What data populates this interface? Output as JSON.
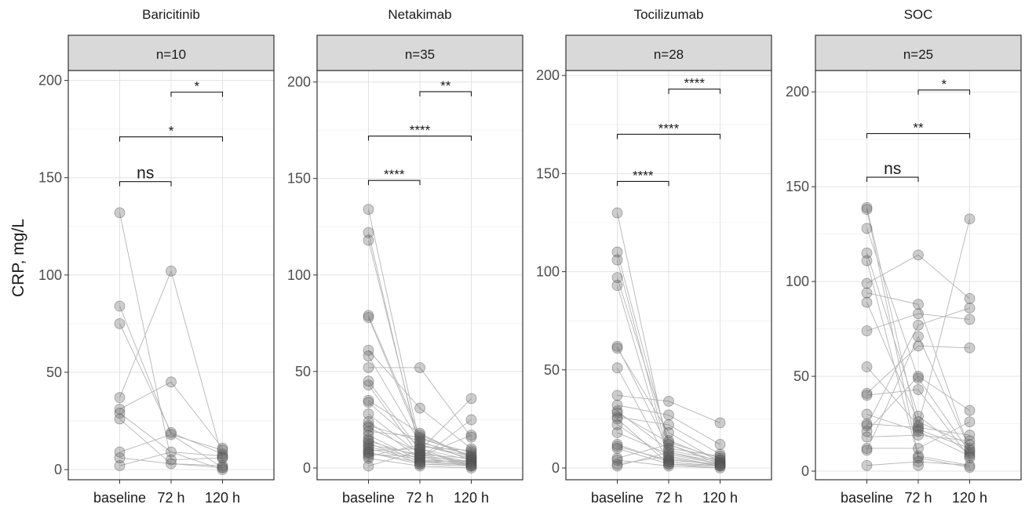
{
  "y_axis_label": "CRP, mg/L",
  "chart_data": [
    {
      "type": "scatter",
      "title": "Baricitinib",
      "strip_label": "n=10",
      "ylabel": "CRP, mg/L",
      "categories": [
        "baseline",
        "72 h",
        "120 h"
      ],
      "ylim": [
        -5,
        205
      ],
      "yticks": [
        0,
        50,
        100,
        150,
        200
      ],
      "grid": true,
      "points": {
        "baseline": [
          132,
          84,
          75,
          37,
          31,
          29,
          26,
          9,
          6,
          2
        ],
        "72 h": [
          102,
          45,
          19,
          18,
          9,
          5,
          3
        ],
        "120 h": [
          11,
          10,
          8,
          7,
          6,
          6,
          2,
          1,
          1,
          0
        ]
      },
      "lines": [
        [
          132,
          5,
          6
        ],
        [
          84,
          18,
          10
        ],
        [
          75,
          19,
          8
        ],
        [
          37,
          102,
          6
        ],
        [
          31,
          45,
          11
        ],
        [
          29,
          9,
          7
        ],
        [
          26,
          3,
          2
        ],
        [
          9,
          18,
          1
        ],
        [
          6,
          3,
          1
        ],
        [
          2,
          9,
          0
        ]
      ],
      "comparisons": [
        {
          "from": "baseline",
          "to": "72 h",
          "y": 148,
          "label": "ns"
        },
        {
          "from": "baseline",
          "to": "120 h",
          "y": 171,
          "label": "*"
        },
        {
          "from": "72 h",
          "to": "120 h",
          "y": 194,
          "label": "*"
        }
      ]
    },
    {
      "type": "scatter",
      "title": "Netakimab",
      "strip_label": "n=35",
      "ylabel": "",
      "categories": [
        "baseline",
        "72 h",
        "120 h"
      ],
      "ylim": [
        -5,
        205
      ],
      "yticks": [
        0,
        50,
        100,
        150,
        200
      ],
      "grid": true,
      "points": {
        "baseline": [
          134,
          122,
          118,
          79,
          78,
          61,
          58,
          52,
          45,
          43,
          35,
          34,
          28,
          24,
          22,
          21,
          19,
          17,
          15,
          14,
          13,
          12,
          11,
          10,
          9,
          8,
          8,
          7,
          6,
          5,
          1
        ],
        "72 h": [
          52,
          31,
          18,
          17,
          16,
          15,
          14,
          13,
          12,
          11,
          10,
          10,
          9,
          8,
          8,
          7,
          7,
          6,
          6,
          5,
          5,
          4,
          4,
          3,
          3,
          2,
          2,
          1
        ],
        "120 h": [
          36,
          25,
          17,
          16,
          10,
          9,
          8,
          7,
          6,
          6,
          5,
          5,
          4,
          4,
          3,
          3,
          2,
          2,
          1,
          1,
          1,
          0
        ]
      },
      "lines": [
        [
          134,
          12,
          5
        ],
        [
          122,
          8,
          3
        ],
        [
          118,
          10,
          4
        ],
        [
          79,
          17,
          6
        ],
        [
          78,
          15,
          8
        ],
        [
          61,
          31,
          10
        ],
        [
          58,
          13,
          7
        ],
        [
          52,
          52,
          16
        ],
        [
          45,
          9,
          36
        ],
        [
          43,
          6,
          3
        ],
        [
          35,
          18,
          5
        ],
        [
          34,
          11,
          9
        ],
        [
          28,
          7,
          2
        ],
        [
          24,
          5,
          25
        ],
        [
          22,
          14,
          4
        ],
        [
          21,
          8,
          3
        ],
        [
          19,
          16,
          6
        ],
        [
          17,
          4,
          1
        ],
        [
          15,
          3,
          2
        ],
        [
          14,
          6,
          17
        ],
        [
          13,
          2,
          1
        ],
        [
          12,
          7,
          5
        ],
        [
          11,
          5,
          2
        ],
        [
          10,
          4,
          3
        ],
        [
          9,
          10,
          1
        ],
        [
          8,
          3,
          4
        ],
        [
          8,
          2,
          2
        ],
        [
          7,
          6,
          1
        ],
        [
          6,
          12,
          6
        ],
        [
          5,
          1,
          0
        ],
        [
          1,
          9,
          1
        ]
      ],
      "comparisons": [
        {
          "from": "baseline",
          "to": "72 h",
          "y": 149,
          "label": "****"
        },
        {
          "from": "baseline",
          "to": "120 h",
          "y": 172,
          "label": "****"
        },
        {
          "from": "72 h",
          "to": "120 h",
          "y": 195,
          "label": "**"
        }
      ]
    },
    {
      "type": "scatter",
      "title": "Tocilizumab",
      "strip_label": "n=28",
      "ylabel": "",
      "categories": [
        "baseline",
        "72 h",
        "120 h"
      ],
      "ylim": [
        -5,
        205
      ],
      "yticks": [
        0,
        50,
        100,
        150,
        200
      ],
      "grid": true,
      "points": {
        "baseline": [
          130,
          110,
          106,
          97,
          93,
          62,
          61,
          51,
          37,
          32,
          29,
          28,
          26,
          25,
          22,
          18,
          12,
          11,
          10,
          5,
          4,
          2,
          1
        ],
        "72 h": [
          34,
          27,
          22,
          18,
          14,
          13,
          12,
          10,
          9,
          8,
          7,
          6,
          5,
          4,
          4,
          3,
          3,
          2,
          2,
          1
        ],
        "120 h": [
          23,
          12,
          7,
          6,
          5,
          4,
          4,
          3,
          3,
          2,
          2,
          2,
          1,
          1,
          1,
          0
        ]
      },
      "lines": [
        [
          130,
          8,
          3
        ],
        [
          110,
          12,
          2
        ],
        [
          106,
          6,
          1
        ],
        [
          97,
          14,
          4
        ],
        [
          93,
          4,
          2
        ],
        [
          62,
          10,
          6
        ],
        [
          61,
          18,
          3
        ],
        [
          51,
          3,
          1
        ],
        [
          37,
          34,
          23
        ],
        [
          32,
          27,
          12
        ],
        [
          29,
          9,
          4
        ],
        [
          28,
          13,
          5
        ],
        [
          26,
          22,
          7
        ],
        [
          25,
          2,
          0
        ],
        [
          22,
          5,
          1
        ],
        [
          18,
          7,
          2
        ],
        [
          12,
          3,
          1
        ],
        [
          11,
          4,
          2
        ],
        [
          10,
          2,
          1
        ],
        [
          5,
          12,
          3
        ],
        [
          4,
          1,
          0
        ],
        [
          2,
          6,
          1
        ],
        [
          1,
          8,
          2
        ]
      ],
      "comparisons": [
        {
          "from": "baseline",
          "to": "72 h",
          "y": 146,
          "label": "****"
        },
        {
          "from": "baseline",
          "to": "120 h",
          "y": 170,
          "label": "****"
        },
        {
          "from": "72 h",
          "to": "120 h",
          "y": 193,
          "label": "****"
        }
      ]
    },
    {
      "type": "scatter",
      "title": "SOC",
      "strip_label": "n=25",
      "ylabel": "",
      "categories": [
        "baseline",
        "72 h",
        "120 h"
      ],
      "ylim": [
        -5,
        205
      ],
      "yticks": [
        0,
        50,
        100,
        150,
        200
      ],
      "grid": true,
      "points": {
        "baseline": [
          139,
          138,
          128,
          115,
          111,
          99,
          94,
          89,
          74,
          55,
          41,
          40,
          30,
          25,
          24,
          21,
          18,
          12,
          11,
          3
        ],
        "72 h": [
          114,
          88,
          83,
          77,
          71,
          66,
          50,
          49,
          43,
          29,
          26,
          24,
          23,
          22,
          21,
          19,
          12,
          8,
          7,
          5,
          3
        ],
        "120 h": [
          133,
          91,
          86,
          80,
          65,
          32,
          26,
          19,
          16,
          14,
          12,
          11,
          10,
          9,
          8,
          7,
          3,
          2
        ]
      },
      "lines": [
        [
          139,
          22,
          12
        ],
        [
          138,
          8,
          3
        ],
        [
          128,
          49,
          10
        ],
        [
          115,
          29,
          9
        ],
        [
          111,
          7,
          2
        ],
        [
          99,
          114,
          91
        ],
        [
          94,
          88,
          11
        ],
        [
          89,
          26,
          14
        ],
        [
          74,
          83,
          80
        ],
        [
          55,
          24,
          133
        ],
        [
          41,
          66,
          65
        ],
        [
          40,
          43,
          7
        ],
        [
          30,
          21,
          8
        ],
        [
          25,
          23,
          19
        ],
        [
          24,
          77,
          86
        ],
        [
          21,
          50,
          32
        ],
        [
          18,
          19,
          16
        ],
        [
          12,
          12,
          26
        ],
        [
          11,
          71,
          12
        ],
        [
          3,
          5,
          3
        ]
      ],
      "comparisons": [
        {
          "from": "baseline",
          "to": "72 h",
          "y": 155,
          "label": "ns"
        },
        {
          "from": "baseline",
          "to": "120 h",
          "y": 178,
          "label": "**"
        },
        {
          "from": "72 h",
          "to": "120 h",
          "y": 201,
          "label": "*"
        }
      ]
    }
  ]
}
